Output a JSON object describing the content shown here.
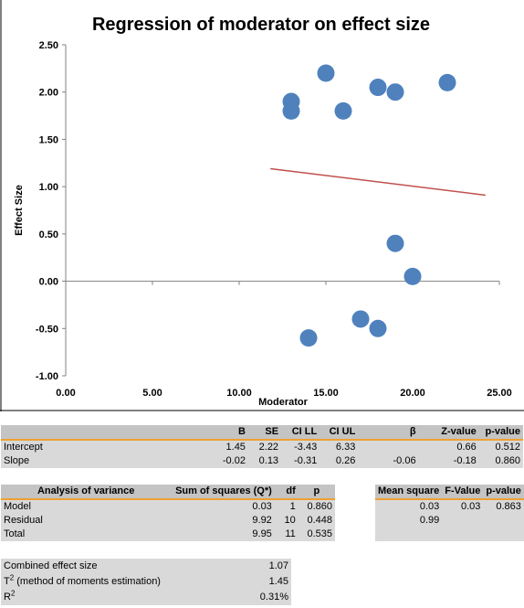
{
  "chart_data": {
    "type": "scatter",
    "title": "Regression of moderator on effect size",
    "xlabel": "Moderator",
    "ylabel": "Effect Size",
    "xlim": [
      0,
      25
    ],
    "ylim": [
      -1,
      2.5
    ],
    "xticks": [
      "0.00",
      "5.00",
      "10.00",
      "15.00",
      "20.00",
      "25.00"
    ],
    "yticks": [
      "2.50",
      "2.00",
      "1.50",
      "1.00",
      "0.50",
      "0.00",
      "-0.50",
      "-1.00"
    ],
    "points": [
      {
        "x": 13,
        "y": 1.9
      },
      {
        "x": 13,
        "y": 1.8
      },
      {
        "x": 14,
        "y": -0.6
      },
      {
        "x": 15,
        "y": 2.2
      },
      {
        "x": 16,
        "y": 1.8
      },
      {
        "x": 17,
        "y": -0.4
      },
      {
        "x": 18,
        "y": 2.05
      },
      {
        "x": 18,
        "y": -0.5
      },
      {
        "x": 19,
        "y": 2.0
      },
      {
        "x": 19,
        "y": 0.4
      },
      {
        "x": 20,
        "y": 0.05
      },
      {
        "x": 22,
        "y": 2.1
      }
    ],
    "regression_line": {
      "x": [
        11.8,
        24.2
      ],
      "y": [
        1.19,
        0.91
      ]
    },
    "colors": {
      "points": "#4f81bd",
      "line": "#c0504d"
    }
  },
  "regression_table": {
    "headers": [
      "",
      "B",
      "SE",
      "CI LL",
      "CI UL",
      "β",
      "Z-value",
      "p-value"
    ],
    "rows": [
      {
        "label": "Intercept",
        "b": "1.45",
        "se": "2.22",
        "cill": "-3.43",
        "ciul": "6.33",
        "beta": "",
        "z": "0.66",
        "p": "0.512"
      },
      {
        "label": "Slope",
        "b": "-0.02",
        "se": "0.13",
        "cill": "-0.31",
        "ciul": "0.26",
        "beta": "-0.06",
        "z": "-0.18",
        "p": "0.860"
      }
    ]
  },
  "anova_table": {
    "headers": [
      "Analysis of variance",
      "Sum of squares (Q*)",
      "df",
      "p"
    ],
    "rows": [
      {
        "label": "Model",
        "ss": "0.03",
        "df": "1",
        "p": "0.860"
      },
      {
        "label": "Residual",
        "ss": "9.92",
        "df": "10",
        "p": "0.448"
      },
      {
        "label": "Total",
        "ss": "9.95",
        "df": "11",
        "p": "0.535"
      }
    ]
  },
  "ms_table": {
    "headers": [
      "Mean square",
      "F-Value",
      "p-value"
    ],
    "rows": [
      {
        "ms": "0.03",
        "f": "0.03",
        "p": "0.863"
      },
      {
        "ms": "0.99",
        "f": "",
        "p": ""
      },
      {
        "ms": "",
        "f": "",
        "p": ""
      }
    ]
  },
  "summary_table": {
    "rows": [
      {
        "label": "Combined effect size",
        "value": "1.07"
      },
      {
        "label_main": "T",
        "label_sup": "2",
        "label_rest": " (method of moments estimation)",
        "value": "1.45"
      },
      {
        "label_main": "R",
        "label_sup": "2",
        "label_rest": "",
        "value": "0.31%"
      }
    ]
  }
}
